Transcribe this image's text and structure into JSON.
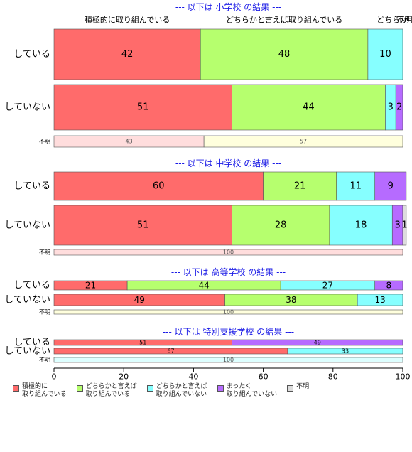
{
  "chart_data": {
    "type": "bar",
    "orientation": "horizontal",
    "stacked": "percent",
    "xlim": [
      0,
      100
    ],
    "x_ticks": [
      "0",
      "20",
      "40",
      "60",
      "80",
      "100"
    ],
    "legend_position": "bottom",
    "categories": [
      {
        "label": "積極的に\n取り組んでいる",
        "color": "#FF6B6B"
      },
      {
        "label": "どちらかと言えば\n取り組んでいる",
        "color": "#B6FF6E"
      },
      {
        "label": "どちらかと言えば\n取り組んでいない",
        "color": "#86FFFF"
      },
      {
        "label": "まったく\n取り組んでいない",
        "color": "#B66BFF"
      },
      {
        "label": "不明",
        "color": "#DDDDDD"
      }
    ],
    "top_labels": [
      "積極的に取り組んでいる",
      "どちらかと言えば取り組んでいる",
      "どちらか",
      "不明"
    ],
    "panels": [
      {
        "title": "--- 以下は 小学校 の結果 ---",
        "rows": [
          {
            "label": "している",
            "values": [
              42,
              48,
              10,
              0,
              0
            ]
          },
          {
            "label": "していない",
            "values": [
              51,
              44,
              3,
              2,
              0
            ]
          },
          {
            "label": "不明",
            "values": [
              43,
              57
            ],
            "colors": [
              "#FFDDDD",
              "#FFFFDD"
            ]
          }
        ]
      },
      {
        "title": "--- 以下は 中学校 の結果 ---",
        "rows": [
          {
            "label": "している",
            "values": [
              60,
              21,
              11,
              9,
              0
            ]
          },
          {
            "label": "していない",
            "values": [
              51,
              28,
              18,
              3,
              1
            ]
          },
          {
            "label": "不明",
            "values": [
              100
            ],
            "colors": [
              "#FFDDDD"
            ]
          }
        ]
      },
      {
        "title": "--- 以下は 高等学校 の結果 ---",
        "rows": [
          {
            "label": "している",
            "values": [
              21,
              44,
              27,
              8,
              0
            ]
          },
          {
            "label": "していない",
            "values": [
              49,
              38,
              13,
              0,
              0
            ]
          },
          {
            "label": "不明",
            "values": [
              100
            ],
            "colors": [
              "#FFFFDD"
            ]
          }
        ]
      },
      {
        "title": "--- 以下は 特別支援学校 の結果 ---",
        "rows": [
          {
            "label": "している",
            "values": [
              51,
              0,
              0,
              49,
              0
            ]
          },
          {
            "label": "していない",
            "values": [
              67,
              0,
              33,
              0,
              0
            ]
          },
          {
            "label": "不明",
            "values": [
              100
            ],
            "colors": [
              "#DDFFFF"
            ]
          }
        ]
      }
    ]
  }
}
